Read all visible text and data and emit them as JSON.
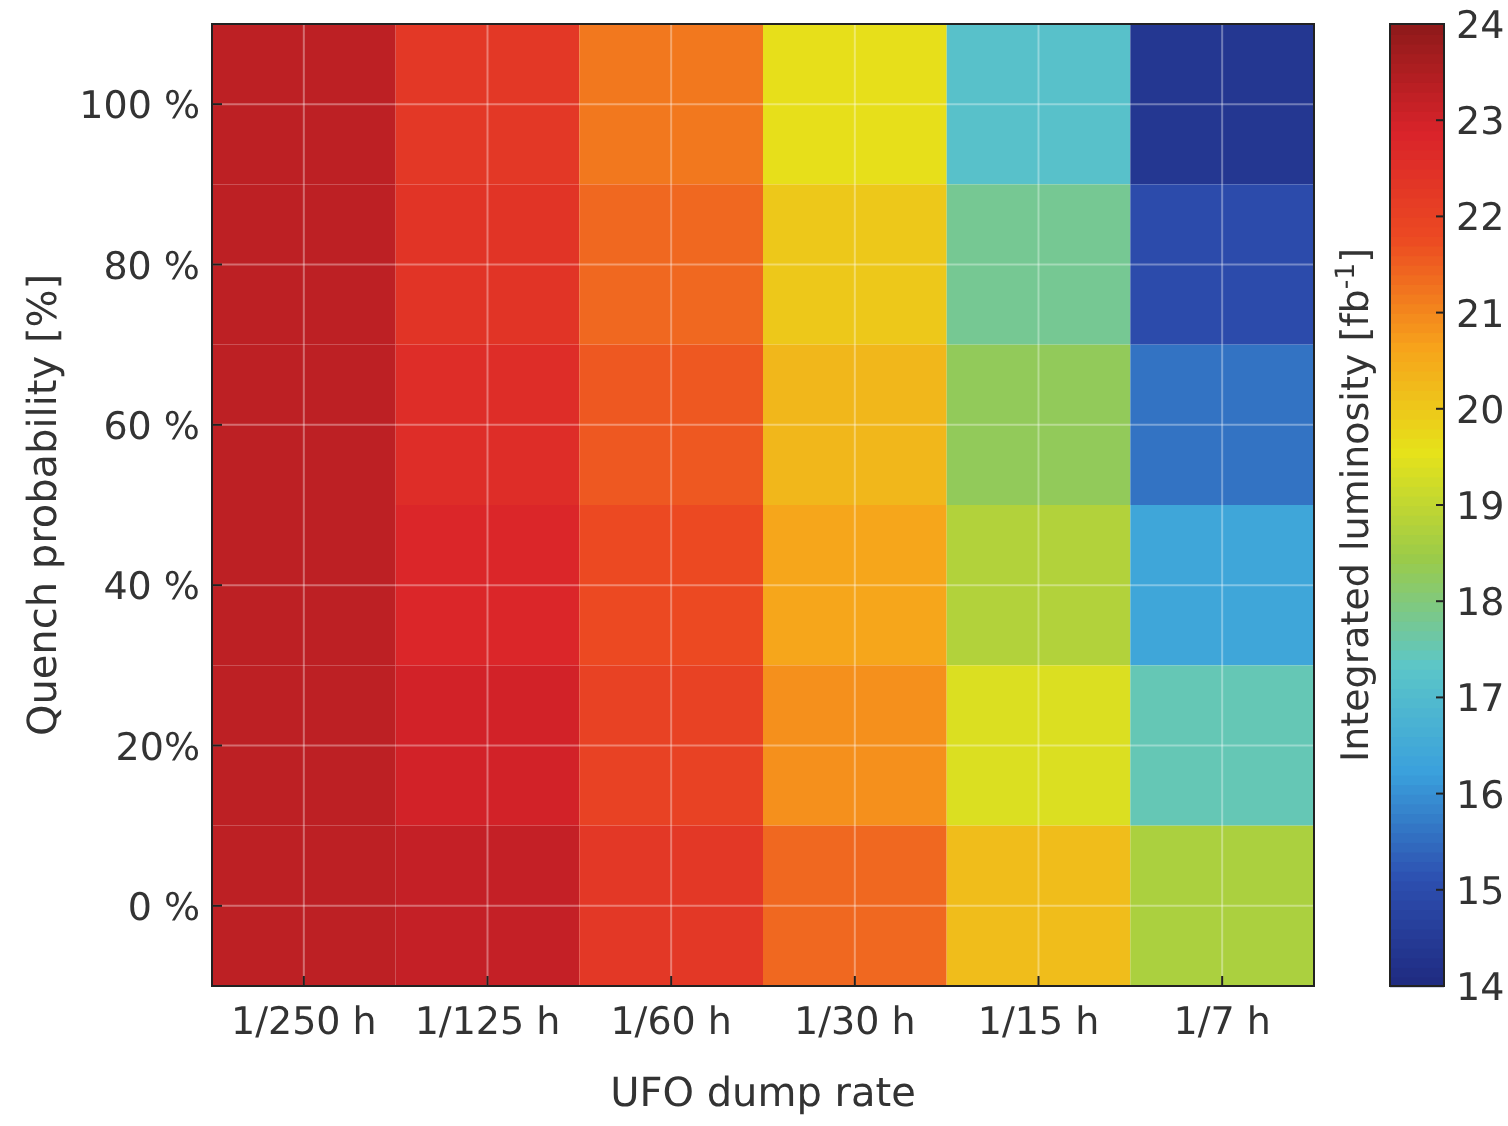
{
  "chart_data": {
    "type": "heatmap",
    "xlabel": "UFO dump rate",
    "ylabel": "Quench probability [%]",
    "clabel": "Integrated luminosity [fb$^{-1}$]",
    "categories": [
      "1/250 h",
      "1/125 h",
      "1/60 h",
      "1/30 h",
      "1/15 h",
      "1/7 h"
    ],
    "y_categories": [
      "100 %",
      "80 %",
      "60 %",
      "40 %",
      "20%",
      "0 %"
    ],
    "cells": [
      [
        23.3,
        22.3,
        21.2,
        19.6,
        17.2,
        14.4
      ],
      [
        23.3,
        22.4,
        21.4,
        20.0,
        17.8,
        15.0
      ],
      [
        23.3,
        22.6,
        21.6,
        20.3,
        18.3,
        15.6
      ],
      [
        23.3,
        22.8,
        21.8,
        20.6,
        18.8,
        16.4
      ],
      [
        23.3,
        23.0,
        22.0,
        20.9,
        19.4,
        17.5
      ],
      [
        23.3,
        23.2,
        22.3,
        21.4,
        20.2,
        18.7
      ]
    ],
    "clim": [
      14,
      24
    ],
    "cticks": [
      14,
      15,
      16,
      17,
      18,
      19,
      20,
      21,
      22,
      23,
      24
    ],
    "grid": true
  }
}
